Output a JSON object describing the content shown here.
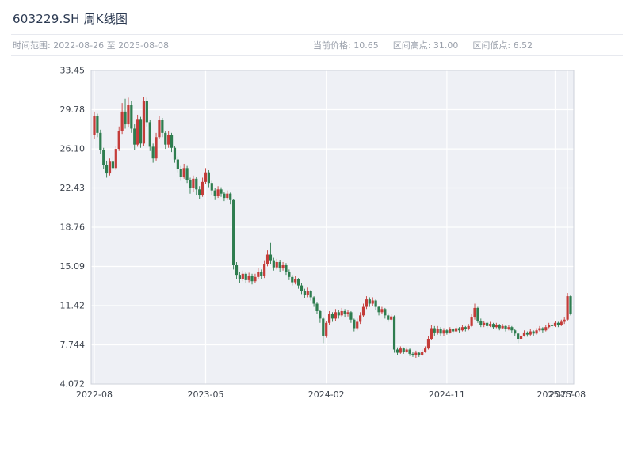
{
  "header": {
    "title": "603229.SH 周K线图",
    "time_range": "时间范围: 2022-08-26 至 2025-08-08",
    "current_price": "当前价格: 10.65",
    "range_high": "区间高点: 31.00",
    "range_low": "区间低点: 6.52"
  },
  "chart_data": {
    "type": "candlestick",
    "title": "603229.SH 周K线图",
    "interval": "weekly",
    "start_date": "2022-08-26",
    "end_date": "2025-08-08",
    "current_price": 10.65,
    "range_high": 31.0,
    "range_low": 6.52,
    "up_color": "#c43c39",
    "down_color": "#2e7d4f",
    "plot_bg": "#eef0f5",
    "grid_color": "#ffffff",
    "border_color": "#ccd0da",
    "tick_text_color": "#3d434d",
    "y_ticks": [
      {
        "v": 33.45,
        "label": "33.45"
      },
      {
        "v": 29.78,
        "label": "29.78"
      },
      {
        "v": 26.1,
        "label": "26.10"
      },
      {
        "v": 22.43,
        "label": "22.43"
      },
      {
        "v": 18.76,
        "label": "18.76"
      },
      {
        "v": 15.09,
        "label": "15.09"
      },
      {
        "v": 11.42,
        "label": "11.42"
      },
      {
        "v": 7.744,
        "label": "7.744"
      },
      {
        "v": 4.072,
        "label": "4.072"
      }
    ],
    "x_ticks": [
      {
        "i": 0,
        "label": "2022-08"
      },
      {
        "i": 36,
        "label": "2023-05"
      },
      {
        "i": 75,
        "label": "2024-02"
      },
      {
        "i": 114,
        "label": "2024-11"
      },
      {
        "i": 149,
        "label": "2025-07"
      },
      {
        "i": 153,
        "label": "2025-08"
      }
    ],
    "ohlc_order": [
      "open",
      "high",
      "low",
      "close"
    ],
    "candles": [
      [
        27.4,
        29.6,
        27.0,
        29.2
      ],
      [
        29.2,
        29.4,
        27.2,
        27.6
      ],
      [
        27.6,
        27.9,
        25.6,
        26.0
      ],
      [
        26.0,
        26.2,
        24.2,
        24.6
      ],
      [
        24.6,
        25.0,
        23.4,
        23.8
      ],
      [
        23.8,
        25.2,
        23.6,
        24.9
      ],
      [
        24.9,
        25.4,
        24.0,
        24.3
      ],
      [
        24.3,
        26.4,
        24.1,
        26.1
      ],
      [
        26.1,
        28.2,
        25.9,
        27.8
      ],
      [
        27.8,
        30.4,
        27.5,
        29.6
      ],
      [
        29.6,
        30.8,
        28.0,
        28.4
      ],
      [
        28.4,
        30.9,
        28.1,
        30.2
      ],
      [
        30.2,
        30.6,
        27.6,
        28.0
      ],
      [
        28.0,
        28.4,
        26.0,
        26.5
      ],
      [
        26.5,
        29.3,
        26.3,
        28.9
      ],
      [
        28.9,
        29.1,
        26.2,
        26.6
      ],
      [
        26.6,
        31.0,
        26.4,
        30.6
      ],
      [
        30.6,
        30.9,
        28.2,
        28.6
      ],
      [
        28.6,
        28.8,
        25.9,
        26.3
      ],
      [
        26.3,
        26.6,
        24.8,
        25.2
      ],
      [
        25.2,
        27.6,
        25.0,
        27.2
      ],
      [
        27.2,
        29.2,
        27.0,
        28.8
      ],
      [
        28.8,
        29.0,
        27.2,
        27.6
      ],
      [
        27.6,
        27.8,
        26.1,
        26.5
      ],
      [
        26.5,
        27.8,
        26.2,
        27.4
      ],
      [
        27.4,
        27.6,
        25.8,
        26.2
      ],
      [
        26.2,
        26.4,
        24.8,
        25.1
      ],
      [
        25.1,
        25.4,
        23.9,
        24.2
      ],
      [
        24.2,
        24.5,
        23.1,
        23.5
      ],
      [
        23.5,
        24.7,
        23.3,
        24.3
      ],
      [
        24.3,
        24.5,
        22.9,
        23.2
      ],
      [
        23.2,
        23.4,
        21.9,
        22.4
      ],
      [
        22.4,
        23.6,
        22.1,
        23.3
      ],
      [
        23.3,
        23.5,
        21.8,
        22.3
      ],
      [
        22.3,
        22.6,
        21.4,
        21.8
      ],
      [
        21.8,
        23.4,
        21.6,
        23.0
      ],
      [
        23.0,
        24.3,
        22.8,
        23.9
      ],
      [
        23.9,
        24.1,
        22.5,
        22.9
      ],
      [
        22.9,
        23.1,
        21.8,
        22.2
      ],
      [
        22.2,
        22.4,
        21.3,
        21.7
      ],
      [
        21.7,
        22.6,
        21.5,
        22.3
      ],
      [
        22.3,
        22.5,
        21.6,
        21.9
      ],
      [
        21.9,
        22.1,
        21.2,
        21.5
      ],
      [
        21.5,
        22.2,
        21.3,
        21.9
      ],
      [
        21.9,
        22.0,
        20.9,
        21.3
      ],
      [
        21.3,
        21.4,
        14.8,
        15.2
      ],
      [
        15.2,
        15.5,
        13.9,
        14.3
      ],
      [
        14.3,
        14.6,
        13.5,
        13.9
      ],
      [
        13.9,
        14.7,
        13.7,
        14.4
      ],
      [
        14.4,
        14.6,
        13.5,
        13.8
      ],
      [
        13.8,
        14.5,
        13.6,
        14.2
      ],
      [
        14.2,
        14.4,
        13.4,
        13.7
      ],
      [
        13.7,
        14.4,
        13.5,
        14.1
      ],
      [
        14.1,
        14.9,
        13.9,
        14.6
      ],
      [
        14.6,
        14.8,
        13.9,
        14.2
      ],
      [
        14.2,
        15.6,
        14.0,
        15.3
      ],
      [
        15.3,
        16.6,
        15.1,
        16.2
      ],
      [
        16.2,
        17.3,
        15.3,
        15.6
      ],
      [
        15.6,
        15.9,
        14.7,
        15.0
      ],
      [
        15.0,
        15.8,
        14.8,
        15.5
      ],
      [
        15.5,
        15.7,
        14.6,
        14.9
      ],
      [
        14.9,
        15.5,
        14.7,
        15.2
      ],
      [
        15.2,
        15.4,
        14.3,
        14.6
      ],
      [
        14.6,
        14.8,
        13.8,
        14.1
      ],
      [
        14.1,
        14.3,
        13.3,
        13.6
      ],
      [
        13.6,
        14.2,
        13.4,
        13.9
      ],
      [
        13.9,
        14.0,
        13.0,
        13.3
      ],
      [
        13.3,
        13.5,
        12.5,
        12.8
      ],
      [
        12.8,
        13.0,
        12.1,
        12.4
      ],
      [
        12.4,
        13.1,
        12.2,
        12.8
      ],
      [
        12.8,
        12.9,
        11.9,
        12.2
      ],
      [
        12.2,
        12.3,
        11.3,
        11.6
      ],
      [
        11.6,
        11.7,
        10.6,
        10.9
      ],
      [
        10.9,
        11.0,
        9.8,
        10.2
      ],
      [
        10.2,
        10.3,
        7.9,
        8.6
      ],
      [
        8.6,
        10.0,
        8.4,
        9.8
      ],
      [
        9.8,
        10.9,
        9.6,
        10.6
      ],
      [
        10.6,
        10.8,
        9.9,
        10.2
      ],
      [
        10.2,
        11.1,
        10.0,
        10.8
      ],
      [
        10.8,
        11.0,
        10.2,
        10.5
      ],
      [
        10.5,
        11.2,
        10.3,
        10.9
      ],
      [
        10.9,
        11.1,
        10.3,
        10.6
      ],
      [
        10.6,
        11.0,
        10.4,
        10.8
      ],
      [
        10.8,
        10.9,
        9.8,
        10.1
      ],
      [
        10.1,
        10.2,
        9.0,
        9.3
      ],
      [
        9.3,
        10.2,
        9.1,
        9.9
      ],
      [
        9.9,
        10.8,
        9.7,
        10.5
      ],
      [
        10.5,
        11.6,
        10.3,
        11.3
      ],
      [
        11.3,
        12.3,
        11.1,
        12.0
      ],
      [
        12.0,
        12.2,
        11.3,
        11.6
      ],
      [
        11.6,
        12.2,
        11.4,
        11.9
      ],
      [
        11.9,
        12.0,
        11.0,
        11.3
      ],
      [
        11.3,
        11.4,
        10.5,
        10.8
      ],
      [
        10.8,
        11.3,
        10.6,
        11.1
      ],
      [
        11.1,
        11.2,
        10.2,
        10.5
      ],
      [
        10.5,
        10.7,
        9.9,
        10.1
      ],
      [
        10.1,
        10.6,
        9.9,
        10.4
      ],
      [
        10.4,
        10.5,
        7.0,
        7.3
      ],
      [
        7.3,
        7.5,
        6.8,
        7.0
      ],
      [
        7.0,
        7.6,
        6.9,
        7.4
      ],
      [
        7.4,
        7.5,
        6.9,
        7.1
      ],
      [
        7.1,
        7.5,
        7.0,
        7.3
      ],
      [
        7.3,
        7.4,
        6.7,
        6.9
      ],
      [
        6.9,
        7.1,
        6.6,
        6.8
      ],
      [
        6.8,
        7.2,
        6.52,
        7.0
      ],
      [
        7.0,
        7.1,
        6.6,
        6.8
      ],
      [
        6.8,
        7.3,
        6.7,
        7.1
      ],
      [
        7.1,
        7.6,
        7.0,
        7.4
      ],
      [
        7.4,
        8.6,
        7.3,
        8.3
      ],
      [
        8.3,
        9.6,
        8.2,
        9.3
      ],
      [
        9.3,
        9.5,
        8.6,
        8.9
      ],
      [
        8.9,
        9.5,
        8.7,
        9.2
      ],
      [
        9.2,
        9.4,
        8.6,
        8.8
      ],
      [
        8.8,
        9.3,
        8.6,
        9.1
      ],
      [
        9.1,
        9.2,
        8.7,
        8.9
      ],
      [
        8.9,
        9.4,
        8.8,
        9.2
      ],
      [
        9.2,
        9.3,
        8.8,
        9.0
      ],
      [
        9.0,
        9.5,
        8.9,
        9.3
      ],
      [
        9.3,
        9.4,
        8.9,
        9.1
      ],
      [
        9.1,
        9.6,
        9.0,
        9.4
      ],
      [
        9.4,
        9.5,
        9.0,
        9.2
      ],
      [
        9.2,
        9.7,
        9.1,
        9.5
      ],
      [
        9.5,
        10.6,
        9.4,
        10.3
      ],
      [
        10.3,
        11.6,
        10.1,
        11.2
      ],
      [
        11.2,
        11.3,
        9.8,
        10.0
      ],
      [
        10.0,
        10.2,
        9.4,
        9.6
      ],
      [
        9.6,
        10.0,
        9.4,
        9.8
      ],
      [
        9.8,
        9.9,
        9.3,
        9.5
      ],
      [
        9.5,
        9.9,
        9.4,
        9.7
      ],
      [
        9.7,
        9.8,
        9.2,
        9.4
      ],
      [
        9.4,
        9.8,
        9.3,
        9.6
      ],
      [
        9.6,
        9.7,
        9.1,
        9.3
      ],
      [
        9.3,
        9.7,
        9.2,
        9.5
      ],
      [
        9.5,
        9.6,
        9.0,
        9.2
      ],
      [
        9.2,
        9.6,
        9.1,
        9.4
      ],
      [
        9.4,
        9.5,
        8.9,
        9.1
      ],
      [
        9.1,
        9.2,
        8.6,
        8.8
      ],
      [
        8.8,
        8.9,
        7.9,
        8.3
      ],
      [
        8.3,
        8.8,
        7.8,
        8.6
      ],
      [
        8.6,
        9.1,
        8.5,
        8.9
      ],
      [
        8.9,
        9.0,
        8.5,
        8.7
      ],
      [
        8.7,
        9.2,
        8.6,
        9.0
      ],
      [
        9.0,
        9.1,
        8.6,
        8.8
      ],
      [
        8.8,
        9.3,
        8.7,
        9.1
      ],
      [
        9.1,
        9.5,
        9.0,
        9.3
      ],
      [
        9.3,
        9.4,
        8.9,
        9.1
      ],
      [
        9.1,
        9.6,
        9.0,
        9.4
      ],
      [
        9.4,
        9.8,
        9.3,
        9.6
      ],
      [
        9.6,
        9.8,
        9.3,
        9.5
      ],
      [
        9.5,
        10.0,
        9.4,
        9.8
      ],
      [
        9.8,
        9.9,
        9.4,
        9.6
      ],
      [
        9.6,
        10.1,
        9.5,
        9.9
      ],
      [
        9.9,
        10.3,
        9.7,
        10.1
      ],
      [
        10.1,
        12.6,
        10.0,
        12.3
      ],
      [
        12.3,
        12.4,
        10.5,
        10.65
      ]
    ]
  }
}
